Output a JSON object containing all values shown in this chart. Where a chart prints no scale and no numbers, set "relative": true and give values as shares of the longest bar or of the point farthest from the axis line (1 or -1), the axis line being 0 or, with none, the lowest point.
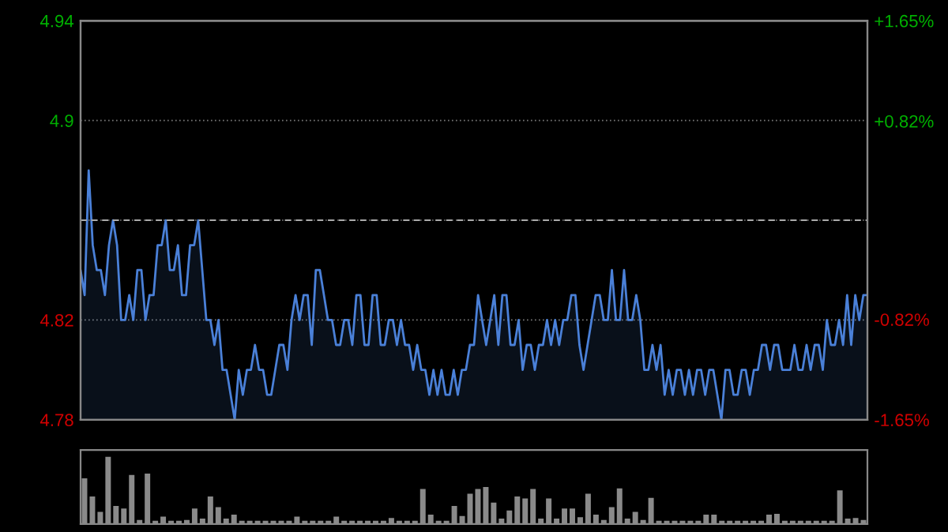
{
  "chart_data": [
    {
      "type": "area",
      "categories": [
        null,
        null,
        null,
        null,
        null,
        null,
        null,
        null,
        null,
        null,
        null,
        null,
        null,
        null,
        null,
        null,
        null,
        null,
        null,
        null,
        null,
        null,
        null,
        null,
        null,
        null,
        null,
        null,
        null,
        null,
        null,
        null,
        null,
        null,
        null,
        null,
        null,
        null,
        null,
        null,
        null,
        null,
        null,
        null,
        null,
        null,
        null,
        null,
        null,
        null,
        null,
        null,
        null,
        null,
        null,
        null,
        null,
        null,
        null,
        null,
        null,
        null,
        null,
        null,
        null,
        null,
        null,
        null,
        null,
        null,
        null,
        null,
        null,
        null,
        null,
        null,
        null,
        null,
        null,
        null,
        null,
        null,
        null,
        null,
        null,
        null,
        null,
        null,
        null,
        null,
        null,
        null,
        null,
        null,
        null,
        null,
        null,
        null,
        null,
        null,
        null,
        null,
        null,
        null,
        null,
        null,
        null,
        null,
        null,
        null,
        null,
        null,
        null,
        null,
        null,
        null,
        null,
        null,
        null,
        null,
        null,
        null,
        null,
        null,
        null,
        null,
        null,
        null,
        null,
        null,
        null,
        null,
        null,
        null,
        null,
        null,
        null,
        null,
        null,
        null,
        null,
        null,
        null,
        null,
        null,
        null,
        null,
        null,
        null,
        null,
        null,
        null,
        null,
        null,
        null,
        null,
        null,
        null,
        null,
        null,
        null,
        null,
        null,
        null,
        null,
        null,
        null,
        null,
        null,
        null,
        null,
        null,
        null,
        null,
        null,
        null,
        null,
        null,
        null,
        null,
        null,
        null,
        null,
        null,
        null,
        null,
        null,
        null,
        null,
        null,
        null,
        null,
        null,
        null,
        null
      ],
      "series": [
        {
          "color": "#4a80d8",
          "values": [
            4.84,
            4.83,
            4.88,
            4.85,
            4.84,
            4.84,
            4.83,
            4.85,
            4.86,
            4.85,
            4.82,
            4.82,
            4.83,
            4.82,
            4.84,
            4.84,
            4.82,
            4.83,
            4.83,
            4.85,
            4.85,
            4.86,
            4.84,
            4.84,
            4.85,
            4.83,
            4.83,
            4.85,
            4.85,
            4.86,
            4.84,
            4.82,
            4.82,
            4.81,
            4.82,
            4.8,
            4.8,
            4.79,
            4.78,
            4.8,
            4.79,
            4.8,
            4.8,
            4.81,
            4.8,
            4.8,
            4.79,
            4.79,
            4.8,
            4.81,
            4.81,
            4.8,
            4.82,
            4.83,
            4.82,
            4.83,
            4.83,
            4.81,
            4.84,
            4.84,
            4.83,
            4.82,
            4.82,
            4.81,
            4.81,
            4.82,
            4.82,
            4.81,
            4.83,
            4.83,
            4.81,
            4.81,
            4.83,
            4.83,
            4.81,
            4.81,
            4.82,
            4.82,
            4.81,
            4.82,
            4.81,
            4.81,
            4.8,
            4.81,
            4.8,
            4.8,
            4.79,
            4.8,
            4.79,
            4.8,
            4.79,
            4.79,
            4.8,
            4.79,
            4.8,
            4.8,
            4.81,
            4.81,
            4.83,
            4.82,
            4.81,
            4.82,
            4.83,
            4.81,
            4.83,
            4.83,
            4.81,
            4.81,
            4.82,
            4.8,
            4.81,
            4.81,
            4.8,
            4.81,
            4.81,
            4.82,
            4.81,
            4.82,
            4.81,
            4.82,
            4.82,
            4.83,
            4.83,
            4.81,
            4.8,
            4.81,
            4.82,
            4.83,
            4.83,
            4.82,
            4.82,
            4.84,
            4.82,
            4.82,
            4.84,
            4.82,
            4.82,
            4.83,
            4.82,
            4.8,
            4.8,
            4.81,
            4.8,
            4.81,
            4.79,
            4.8,
            4.79,
            4.8,
            4.8,
            4.79,
            4.8,
            4.79,
            4.8,
            4.8,
            4.79,
            4.8,
            4.8,
            4.79,
            4.78,
            4.8,
            4.8,
            4.79,
            4.79,
            4.8,
            4.8,
            4.79,
            4.8,
            4.8,
            4.81,
            4.81,
            4.8,
            4.81,
            4.81,
            4.8,
            4.8,
            4.8,
            4.81,
            4.8,
            4.8,
            4.81,
            4.8,
            4.81,
            4.81,
            4.8,
            4.82,
            4.81,
            4.81,
            4.82,
            4.81,
            4.83,
            4.81,
            4.83,
            4.82,
            4.83,
            4.83
          ]
        }
      ],
      "ylim": [
        4.78,
        4.94
      ],
      "yticks": [
        4.78,
        4.82,
        {
          "value": 4.86,
          "label": null
        },
        4.9,
        4.94
      ],
      "y2lim": [
        -1.65,
        1.65
      ],
      "y2ticks": [
        {
          "value": -1.65,
          "label": "-1.65%"
        },
        {
          "value": -0.82,
          "label": "-0.82%"
        },
        {
          "value": 0,
          "label": null
        },
        {
          "value": 0.82,
          "label": "+0.82%"
        },
        {
          "value": 1.65,
          "label": "+1.65%"
        }
      ],
      "grid": "y",
      "ref_lines": [
        {
          "axis": "y",
          "value": 4.86,
          "color": "#aaaaaa",
          "line_style": "dashed"
        }
      ]
    },
    {
      "type": "bar",
      "relative": true,
      "categories": [
        null,
        null,
        null,
        null,
        null,
        null,
        null,
        null,
        null,
        null,
        null,
        null,
        null,
        null,
        null,
        null,
        null,
        null,
        null,
        null,
        null,
        null,
        null,
        null,
        null,
        null,
        null,
        null,
        null,
        null,
        null,
        null,
        null,
        null,
        null,
        null,
        null,
        null,
        null,
        null,
        null,
        null,
        null,
        null,
        null,
        null,
        null,
        null,
        null,
        null,
        null,
        null,
        null,
        null,
        null,
        null,
        null,
        null,
        null,
        null,
        null,
        null,
        null,
        null,
        null,
        null,
        null,
        null,
        null,
        null,
        null,
        null,
        null,
        null,
        null,
        null,
        null,
        null,
        null,
        null,
        null,
        null,
        null,
        null,
        null,
        null,
        null,
        null,
        null,
        null,
        null,
        null,
        null,
        null,
        null,
        null,
        null,
        null,
        null,
        null
      ],
      "series": [
        {
          "color": "#8a8a8a",
          "values": [
            0.68,
            0.41,
            0.18,
            1,
            0.27,
            0.23,
            0.73,
            0.06,
            0.75,
            0.05,
            0.11,
            0.05,
            0.05,
            0.06,
            0.23,
            0.08,
            0.41,
            0.25,
            0.08,
            0.14,
            0.05,
            0.05,
            0.05,
            0.05,
            0.05,
            0.05,
            0.05,
            0.11,
            0.05,
            0.05,
            0.05,
            0.05,
            0.11,
            0.05,
            0.05,
            0.05,
            0.05,
            0.05,
            0.05,
            0.09,
            0.05,
            0.05,
            0.05,
            0.52,
            0.14,
            0.05,
            0.05,
            0.27,
            0.12,
            0.45,
            0.52,
            0.55,
            0.32,
            0.08,
            0.2,
            0.41,
            0.38,
            0.52,
            0.08,
            0.38,
            0.08,
            0.23,
            0.23,
            0.1,
            0.45,
            0.14,
            0.06,
            0.25,
            0.53,
            0.08,
            0.18,
            0.06,
            0.39,
            0.05,
            0.05,
            0.05,
            0.05,
            0.05,
            0.05,
            0.14,
            0.14,
            0.05,
            0.05,
            0.05,
            0.05,
            0.05,
            0.05,
            0.14,
            0.15,
            0.05,
            0.05,
            0.05,
            0.05,
            0.05,
            0.05,
            0.05,
            0.5,
            0.08,
            0.09,
            0.06
          ]
        }
      ]
    }
  ]
}
